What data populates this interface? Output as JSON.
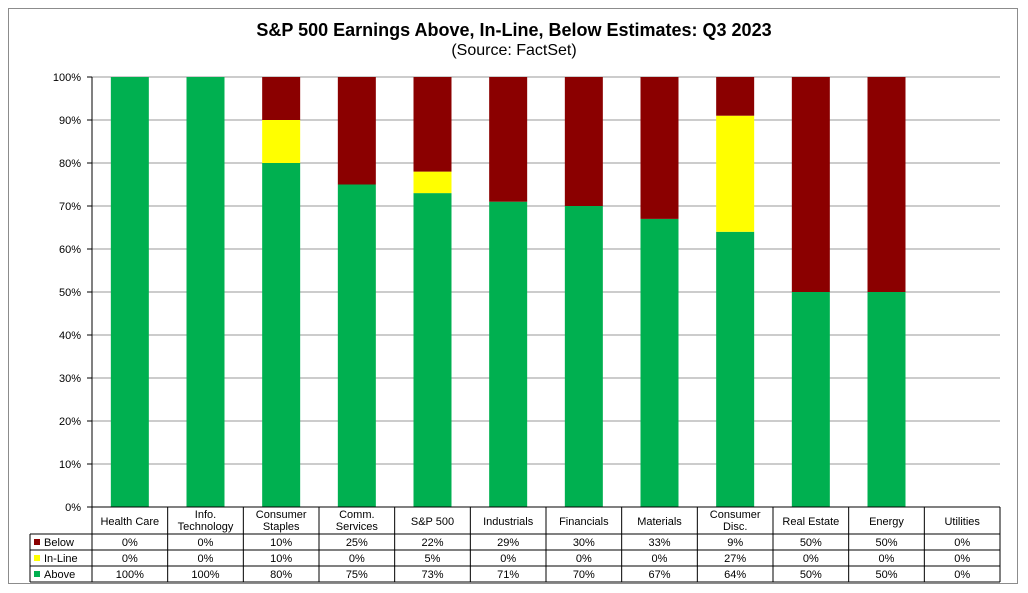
{
  "chart_data": {
    "type": "bar",
    "stacked": true,
    "title": "S&P 500 Earnings Above, In-Line, Below Estimates: Q3 2023",
    "subtitle": "(Source: FactSet)",
    "categories": [
      [
        "Health Care"
      ],
      [
        "Info.",
        "Technology"
      ],
      [
        "Consumer",
        "Staples"
      ],
      [
        "Comm.",
        "Services"
      ],
      [
        "S&P 500"
      ],
      [
        "Industrials"
      ],
      [
        "Financials"
      ],
      [
        "Materials"
      ],
      [
        "Consumer",
        "Disc."
      ],
      [
        "Real Estate"
      ],
      [
        "Energy"
      ],
      [
        "Utilities"
      ]
    ],
    "series": [
      {
        "name": "Below",
        "color": "#8b0000",
        "values": [
          0,
          0,
          10,
          25,
          22,
          29,
          30,
          33,
          9,
          50,
          50,
          0
        ],
        "labels": [
          "0%",
          "0%",
          "10%",
          "25%",
          "22%",
          "29%",
          "30%",
          "33%",
          "9%",
          "50%",
          "50%",
          "0%"
        ]
      },
      {
        "name": "In-Line",
        "color": "#ffff00",
        "values": [
          0,
          0,
          10,
          0,
          5,
          0,
          0,
          0,
          27,
          0,
          0,
          0
        ],
        "labels": [
          "0%",
          "0%",
          "10%",
          "0%",
          "5%",
          "0%",
          "0%",
          "0%",
          "27%",
          "0%",
          "0%",
          "0%"
        ]
      },
      {
        "name": "Above",
        "color": "#00b050",
        "values": [
          100,
          100,
          80,
          75,
          73,
          71,
          70,
          67,
          64,
          50,
          50,
          0
        ],
        "labels": [
          "100%",
          "100%",
          "80%",
          "75%",
          "73%",
          "71%",
          "70%",
          "67%",
          "64%",
          "50%",
          "50%",
          "0%"
        ]
      }
    ],
    "stack_order": [
      "Above",
      "In-Line",
      "Below"
    ],
    "ylim": [
      0,
      100
    ],
    "yticks": [
      "0%",
      "10%",
      "20%",
      "30%",
      "40%",
      "50%",
      "60%",
      "70%",
      "80%",
      "90%",
      "100%"
    ],
    "grid": true,
    "legend_placement": "data-table"
  }
}
